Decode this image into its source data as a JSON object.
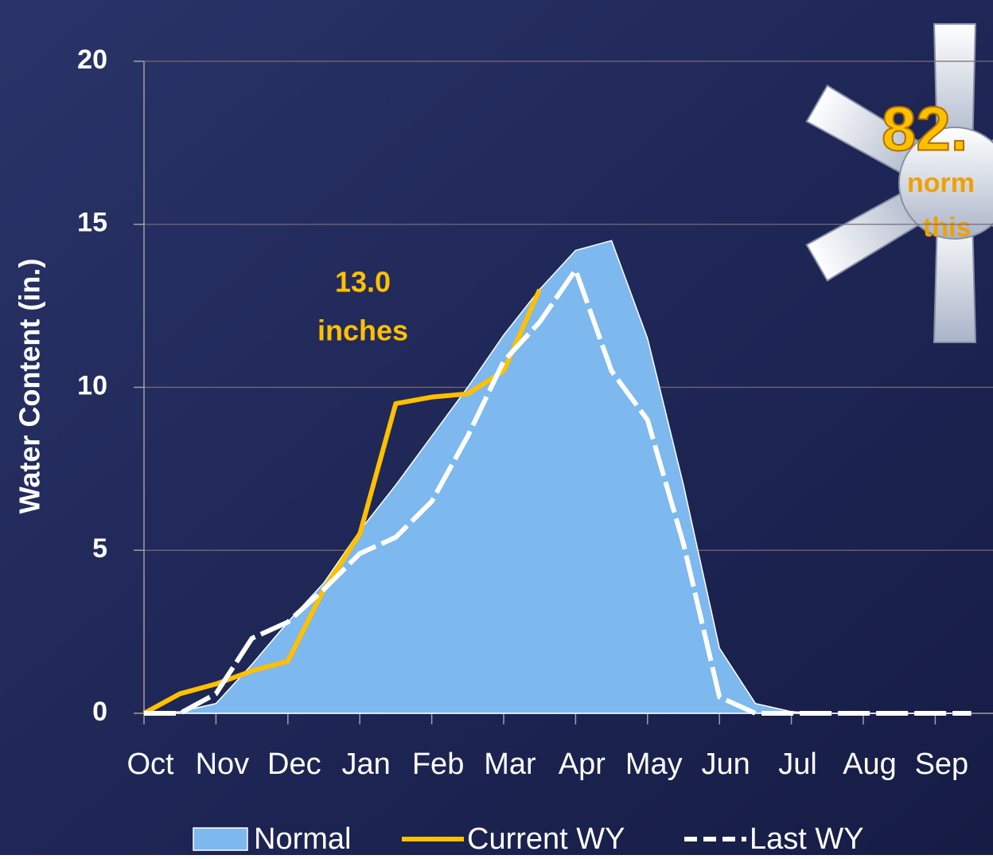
{
  "chart_data": {
    "type": "area-line",
    "y_label": "Water Content (in.)",
    "categories": [
      "Oct",
      null,
      "Nov",
      null,
      "Dec",
      null,
      "Jan",
      null,
      "Feb",
      null,
      "Mar",
      null,
      "Apr",
      null,
      "May",
      null,
      "Jun",
      null,
      "Jul",
      null,
      "Aug",
      null,
      "Sep",
      null
    ],
    "series": [
      {
        "name": "Normal",
        "kind": "area",
        "color": "#7db8ee",
        "values": [
          0,
          0.05,
          0.3,
          1.5,
          2.8,
          4.0,
          5.6,
          7.0,
          8.5,
          10.0,
          11.6,
          13.0,
          14.2,
          14.5,
          11.5,
          7.0,
          2.0,
          0.3,
          0.05,
          0,
          0,
          0,
          0,
          0
        ]
      },
      {
        "name": "Current WY",
        "kind": "line",
        "color": "#ffc000",
        "values": [
          0,
          0.6,
          0.9,
          1.3,
          1.6,
          3.8,
          5.5,
          9.5,
          9.7,
          9.8,
          10.5,
          13.0,
          null,
          null,
          null,
          null,
          null,
          null,
          null,
          null,
          null,
          null,
          null,
          null
        ]
      },
      {
        "name": "Last WY",
        "kind": "line",
        "color": "#ffffff",
        "linestyle": "dashed",
        "values": [
          0,
          0,
          0.6,
          2.3,
          2.8,
          3.8,
          4.9,
          5.4,
          6.5,
          8.5,
          10.8,
          12.0,
          13.6,
          10.5,
          9.0,
          5.2,
          0.5,
          0,
          0,
          0,
          0,
          0,
          0,
          0
        ]
      }
    ],
    "ylim": [
      0,
      20
    ],
    "yticks": [
      0,
      5,
      10,
      15,
      20
    ],
    "grid": true,
    "annotations": [
      "13.0",
      "inches"
    ],
    "badge": [
      "82.",
      "norm",
      "this"
    ]
  }
}
